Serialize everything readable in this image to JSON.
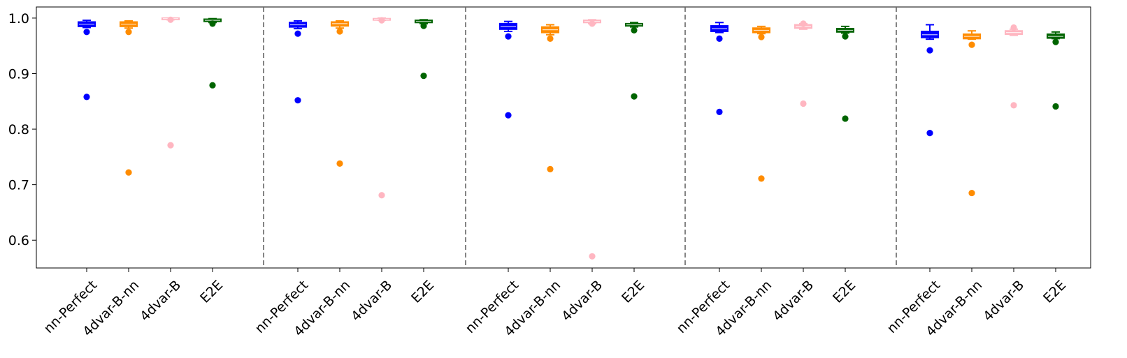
{
  "chart_data": {
    "type": "box",
    "title": "",
    "xlabel": "",
    "ylabel": "",
    "ylim": [
      0.55,
      1.02
    ],
    "yticks": [
      0.6,
      0.7,
      0.8,
      0.9,
      1.0
    ],
    "ytick_labels": [
      "0.6",
      "0.7",
      "0.8",
      "0.9",
      "1.0"
    ],
    "grid": false,
    "separators": "dashed vertical lines between groups",
    "categories": [
      "nn-Perfect",
      "4dvar-B-nn",
      "4dvar-B",
      "E2E"
    ],
    "colors": {
      "nn-Perfect": "#0000ff",
      "4dvar-B-nn": "#ff8c00",
      "4dvar-B": "#ffb6c1",
      "E2E": "#006400"
    },
    "groups": [
      {
        "boxes": [
          {
            "category": "nn-Perfect",
            "whisker_low": 0.983,
            "q1": 0.985,
            "median": 0.989,
            "q3": 0.993,
            "whisker_high": 0.996,
            "outliers": [
              0.975,
              0.858
            ]
          },
          {
            "category": "4dvar-B-nn",
            "whisker_low": 0.982,
            "q1": 0.985,
            "median": 0.989,
            "q3": 0.993,
            "whisker_high": 0.995,
            "outliers": [
              0.975,
              0.722
            ]
          },
          {
            "category": "4dvar-B",
            "whisker_low": 0.997,
            "q1": 0.998,
            "median": 0.999,
            "q3": 1.0,
            "whisker_high": 1.0,
            "outliers": [
              0.997,
              0.771
            ]
          },
          {
            "category": "E2E",
            "whisker_low": 0.992,
            "q1": 0.994,
            "median": 0.996,
            "q3": 0.998,
            "whisker_high": 0.999,
            "outliers": [
              0.99,
              0.879
            ]
          }
        ]
      },
      {
        "boxes": [
          {
            "category": "nn-Perfect",
            "whisker_low": 0.981,
            "q1": 0.984,
            "median": 0.988,
            "q3": 0.992,
            "whisker_high": 0.995,
            "outliers": [
              0.972,
              0.852
            ]
          },
          {
            "category": "4dvar-B-nn",
            "whisker_low": 0.982,
            "q1": 0.986,
            "median": 0.99,
            "q3": 0.993,
            "whisker_high": 0.995,
            "outliers": [
              0.976,
              0.738
            ]
          },
          {
            "category": "4dvar-B",
            "whisker_low": 0.996,
            "q1": 0.997,
            "median": 0.998,
            "q3": 0.999,
            "whisker_high": 1.0,
            "outliers": [
              0.996,
              0.681
            ]
          },
          {
            "category": "E2E",
            "whisker_low": 0.99,
            "q1": 0.992,
            "median": 0.994,
            "q3": 0.996,
            "whisker_high": 0.997,
            "outliers": [
              0.986,
              0.896
            ]
          }
        ]
      },
      {
        "boxes": [
          {
            "category": "nn-Perfect",
            "whisker_low": 0.976,
            "q1": 0.98,
            "median": 0.985,
            "q3": 0.99,
            "whisker_high": 0.994,
            "outliers": [
              0.967,
              0.825
            ]
          },
          {
            "category": "4dvar-B-nn",
            "whisker_low": 0.97,
            "q1": 0.974,
            "median": 0.979,
            "q3": 0.984,
            "whisker_high": 0.988,
            "outliers": [
              0.963,
              0.728
            ]
          },
          {
            "category": "4dvar-B",
            "whisker_low": 0.99,
            "q1": 0.992,
            "median": 0.994,
            "q3": 0.996,
            "whisker_high": 0.997,
            "outliers": [
              0.99,
              0.571
            ]
          },
          {
            "category": "E2E",
            "whisker_low": 0.984,
            "q1": 0.986,
            "median": 0.988,
            "q3": 0.99,
            "whisker_high": 0.992,
            "outliers": [
              0.978,
              0.859
            ]
          }
        ]
      },
      {
        "boxes": [
          {
            "category": "nn-Perfect",
            "whisker_low": 0.974,
            "q1": 0.976,
            "median": 0.981,
            "q3": 0.986,
            "whisker_high": 0.992,
            "outliers": [
              0.963,
              0.831
            ]
          },
          {
            "category": "4dvar-B-nn",
            "whisker_low": 0.972,
            "q1": 0.974,
            "median": 0.978,
            "q3": 0.982,
            "whisker_high": 0.985,
            "outliers": [
              0.966,
              0.711
            ]
          },
          {
            "category": "4dvar-B",
            "whisker_low": 0.98,
            "q1": 0.982,
            "median": 0.985,
            "q3": 0.988,
            "whisker_high": 0.99,
            "outliers": [
              0.99,
              0.846
            ]
          },
          {
            "category": "E2E",
            "whisker_low": 0.973,
            "q1": 0.975,
            "median": 0.978,
            "q3": 0.981,
            "whisker_high": 0.985,
            "outliers": [
              0.967,
              0.819
            ]
          }
        ]
      },
      {
        "boxes": [
          {
            "category": "nn-Perfect",
            "whisker_low": 0.962,
            "q1": 0.965,
            "median": 0.97,
            "q3": 0.976,
            "whisker_high": 0.988,
            "outliers": [
              0.942,
              0.793
            ]
          },
          {
            "category": "4dvar-B-nn",
            "whisker_low": 0.962,
            "q1": 0.963,
            "median": 0.967,
            "q3": 0.971,
            "whisker_high": 0.977,
            "outliers": [
              0.952,
              0.685
            ]
          },
          {
            "category": "4dvar-B",
            "whisker_low": 0.969,
            "q1": 0.971,
            "median": 0.974,
            "q3": 0.977,
            "whisker_high": 0.98,
            "outliers": [
              0.983,
              0.843
            ]
          },
          {
            "category": "E2E",
            "whisker_low": 0.963,
            "q1": 0.964,
            "median": 0.967,
            "q3": 0.971,
            "whisker_high": 0.975,
            "outliers": [
              0.957,
              0.841
            ]
          }
        ]
      }
    ]
  }
}
